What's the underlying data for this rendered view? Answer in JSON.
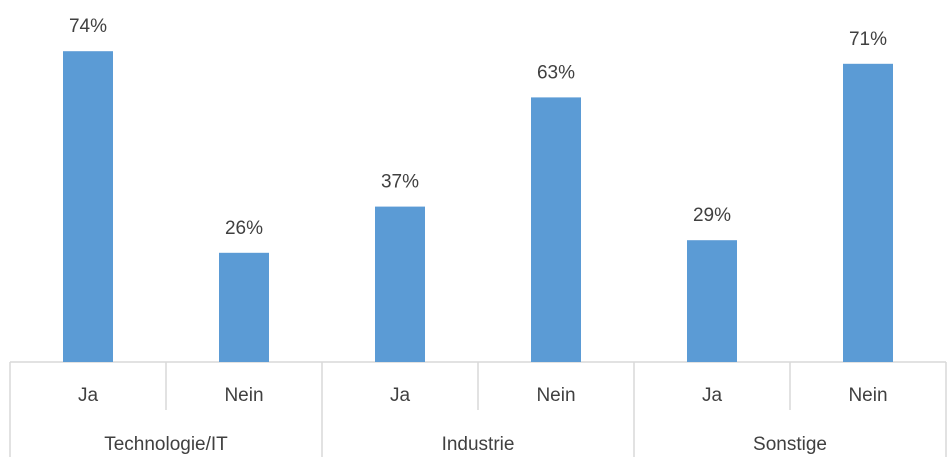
{
  "chart_data": {
    "type": "bar",
    "categories": [
      "Ja",
      "Nein",
      "Ja",
      "Nein",
      "Ja",
      "Nein"
    ],
    "groups": [
      "Technologie/IT",
      "Industrie",
      "Sonstige"
    ],
    "values": [
      74,
      26,
      37,
      63,
      29,
      71
    ],
    "value_labels": [
      "74%",
      "26%",
      "37%",
      "63%",
      "29%",
      "71%"
    ],
    "color": "#5b9bd5"
  }
}
